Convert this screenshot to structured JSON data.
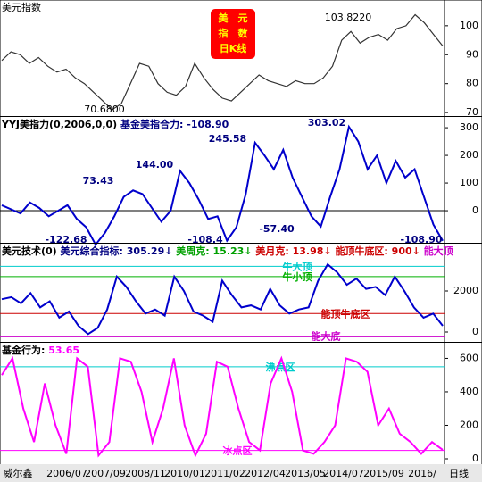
{
  "chart_data": [
    {
      "type": "line",
      "header": [
        {
          "text": "美元指数",
          "color": "#000000"
        }
      ],
      "badge": [
        "美　元",
        "指　数",
        "日K线"
      ],
      "annotations": [
        "103.8220",
        "70.6800"
      ],
      "series": [
        {
          "color": "#333333",
          "values": [
            88,
            91,
            90,
            87,
            89,
            86,
            84,
            85,
            82,
            80,
            77,
            74,
            71,
            73,
            80,
            87,
            86,
            80,
            77,
            76,
            79,
            87,
            82,
            78,
            75,
            74,
            77,
            80,
            83,
            81,
            80,
            79,
            81,
            80,
            80,
            82,
            86,
            95,
            98,
            94,
            96,
            97,
            95,
            99,
            100,
            103.8,
            101,
            97,
            93
          ]
        }
      ],
      "ylim": [
        68.8,
        108.9
      ],
      "yticks": [
        70,
        80,
        90,
        100
      ]
    },
    {
      "type": "line",
      "header": [
        {
          "text": "YYJ美指力(0,2006,0,0)",
          "color": "#000000"
        },
        {
          "text": " 基金美指合力: -108.90",
          "color": "#000080"
        }
      ],
      "annotations": [
        "73.43",
        "144.00",
        "245.58",
        "303.02",
        "-57.40",
        "-122.68",
        "-108.4",
        "-108.90"
      ],
      "series": [
        {
          "color": "#0000cc",
          "values": [
            20,
            5,
            -10,
            30,
            10,
            -20,
            0,
            20,
            -30,
            -60,
            -122.68,
            -80,
            -20,
            50,
            73.43,
            60,
            10,
            -40,
            0,
            144,
            100,
            40,
            -30,
            -20,
            -108.4,
            -60,
            60,
            245.58,
            200,
            150,
            220,
            120,
            50,
            -20,
            -57.4,
            50,
            150,
            303.02,
            250,
            150,
            200,
            100,
            180,
            120,
            150,
            50,
            -50,
            -108.9
          ]
        }
      ],
      "ref_lines": [
        {
          "value": 0,
          "color": "#000000"
        }
      ],
      "ylim": [
        -116,
        339
      ],
      "yticks": [
        0,
        100,
        200,
        300
      ]
    },
    {
      "type": "line",
      "header": [
        {
          "text": "美元技术(0) ",
          "color": "#000000"
        },
        {
          "text": "美元综合指标: 305.29↓ ",
          "color": "#000080"
        },
        {
          "text": "美周克: 15.23↓ ",
          "color": "#00a000"
        },
        {
          "text": "美月克: 13.98↓ ",
          "color": "#cc0000"
        },
        {
          "text": "能顶牛底区: 900↓ ",
          "color": "#cc0000"
        },
        {
          "text": "能大顶",
          "color": "#cc00cc"
        }
      ],
      "series": [
        {
          "color": "#0000cc",
          "values": [
            1600,
            1700,
            1400,
            1900,
            1200,
            1500,
            700,
            1000,
            300,
            -100,
            200,
            1100,
            2700,
            2200,
            1500,
            900,
            1100,
            800,
            2700,
            2000,
            1000,
            800,
            500,
            2500,
            1800,
            1200,
            1300,
            1100,
            2100,
            1300,
            900,
            1100,
            1200,
            2500,
            3300,
            2900,
            2300,
            2600,
            2100,
            2200,
            1800,
            2700,
            2000,
            1200,
            700,
            900,
            305.29
          ]
        }
      ],
      "ref_lines": [
        {
          "name": "牛大顶",
          "value": 3200,
          "color": "#00cccc"
        },
        {
          "name": "牛小顶",
          "value": 2700,
          "color": "#00b000"
        },
        {
          "name": "能顶牛底区",
          "value": 900,
          "color": "#cc0000"
        },
        {
          "name": "能大底",
          "value": -200,
          "color": "#cc00cc"
        }
      ],
      "ylim": [
        -478,
        4304
      ],
      "yticks": [
        0,
        2000
      ]
    },
    {
      "type": "line",
      "header": [
        {
          "text": "基金行为: ",
          "color": "#000000"
        },
        {
          "text": "53.65",
          "color": "#ff00ff"
        }
      ],
      "series": [
        {
          "color": "#ff00ff",
          "values": [
            500,
            600,
            300,
            100,
            450,
            200,
            30,
            600,
            550,
            20,
            100,
            600,
            580,
            400,
            100,
            300,
            600,
            200,
            20,
            150,
            580,
            550,
            300,
            100,
            50,
            450,
            600,
            400,
            50,
            30,
            100,
            200,
            600,
            580,
            520,
            200,
            300,
            150,
            100,
            30,
            100,
            53.65
          ]
        }
      ],
      "ref_lines": [
        {
          "name": "沸点区",
          "value": 550,
          "color": "#00cccc"
        },
        {
          "name": "冰点区",
          "value": 50,
          "color": "#ff00ff"
        }
      ],
      "ylim": [
        -32,
        693
      ],
      "yticks": [
        0,
        200,
        400,
        600
      ],
      "x_labels": [
        "威尔鑫",
        "2006/07",
        "2007/09",
        "2008/11",
        "2010/01",
        "2011/02",
        "2012/04",
        "2013/05",
        "2014/07",
        "2015/09",
        "2016/",
        "日线"
      ]
    }
  ]
}
